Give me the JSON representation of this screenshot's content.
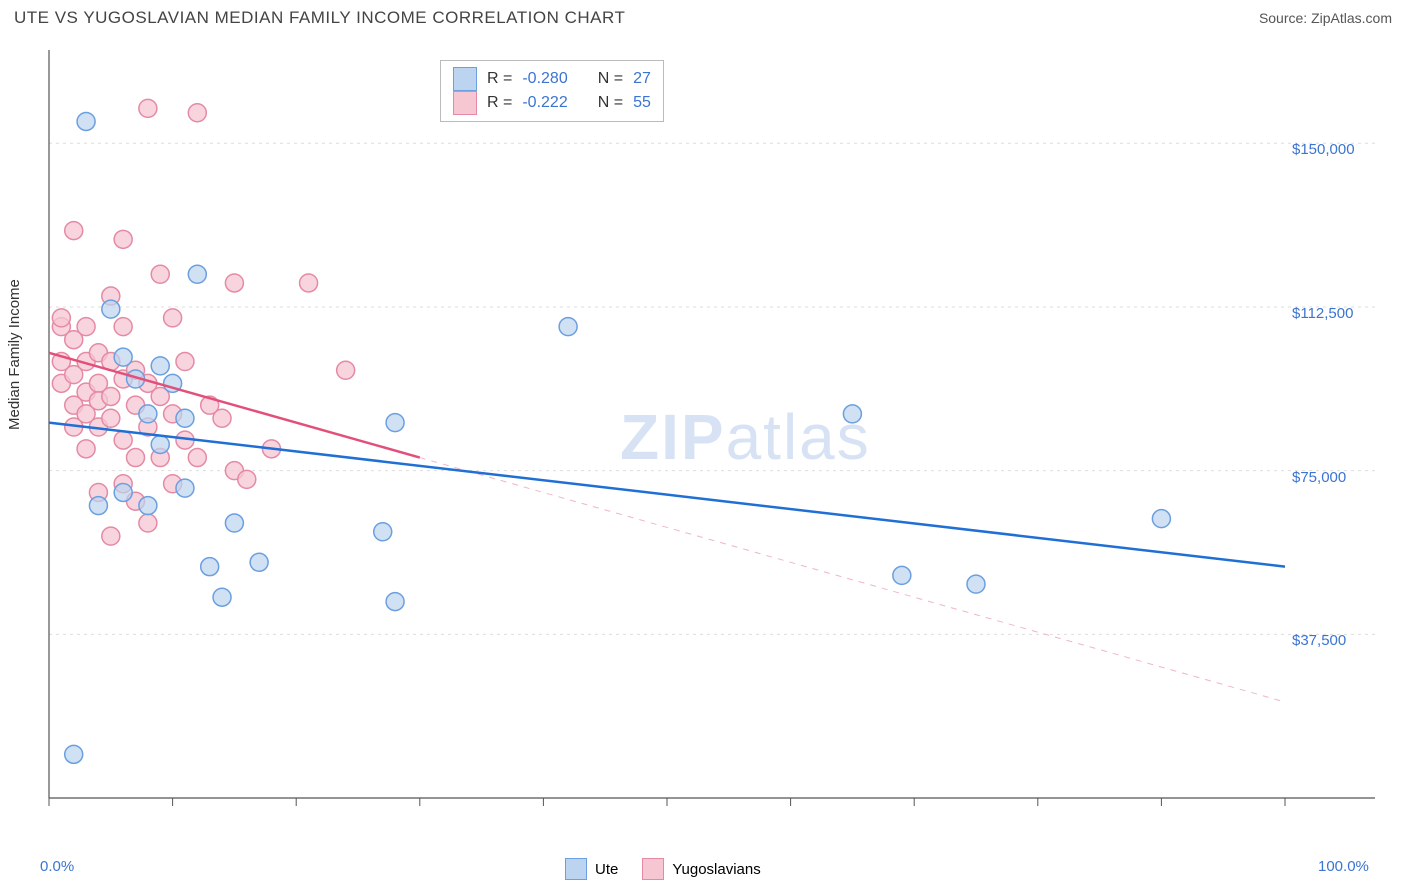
{
  "title": "UTE VS YUGOSLAVIAN MEDIAN FAMILY INCOME CORRELATION CHART",
  "source": "Source: ZipAtlas.com",
  "y_axis_label": "Median Family Income",
  "watermark": {
    "zip": "ZIP",
    "atlas": "atlas"
  },
  "chart": {
    "type": "scatter",
    "background_color": "#ffffff",
    "grid_color": "#dddddd",
    "axis_color": "#555555",
    "xlim": [
      0,
      100
    ],
    "ylim": [
      0,
      170000
    ],
    "x_ticks": [
      0,
      10,
      20,
      30,
      40,
      50,
      60,
      70,
      80,
      90,
      100
    ],
    "x_tick_labels": {
      "0": "0.0%",
      "100": "100.0%"
    },
    "y_gridlines": [
      37500,
      75000,
      112500,
      150000
    ],
    "y_tick_labels": [
      "$37,500",
      "$75,000",
      "$112,500",
      "$150,000"
    ],
    "marker_radius": 9,
    "marker_stroke_width": 1.5,
    "series": [
      {
        "name": "Ute",
        "fill": "#bcd4f0",
        "stroke": "#6b9fe0",
        "fill_opacity": 0.7,
        "trend": {
          "color": "#1f6fd4",
          "width": 2.5,
          "dash": "none",
          "x1": 0,
          "y1": 86000,
          "x2": 100,
          "y2": 53000,
          "extrapolate_dash": false
        },
        "R": "-0.280",
        "N": "27",
        "points": [
          [
            3,
            155000
          ],
          [
            4,
            67000
          ],
          [
            5,
            112000
          ],
          [
            6,
            101000
          ],
          [
            6,
            70000
          ],
          [
            7,
            96000
          ],
          [
            8,
            88000
          ],
          [
            8,
            67000
          ],
          [
            9,
            99000
          ],
          [
            10,
            95000
          ],
          [
            11,
            87000
          ],
          [
            11,
            71000
          ],
          [
            12,
            120000
          ],
          [
            13,
            53000
          ],
          [
            14,
            46000
          ],
          [
            15,
            63000
          ],
          [
            17,
            54000
          ],
          [
            27,
            61000
          ],
          [
            28,
            86000
          ],
          [
            28,
            45000
          ],
          [
            42,
            108000
          ],
          [
            65,
            88000
          ],
          [
            69,
            51000
          ],
          [
            75,
            49000
          ],
          [
            90,
            64000
          ],
          [
            2,
            10000
          ],
          [
            9,
            81000
          ]
        ]
      },
      {
        "name": "Yugoslavians",
        "fill": "#f6c7d3",
        "stroke": "#e58aa5",
        "fill_opacity": 0.75,
        "trend": {
          "color": "#e2507a",
          "width": 2.5,
          "dash": "4 4",
          "x1": 0,
          "y1": 102000,
          "x2": 30,
          "y2": 78000,
          "extrapolate_to_x": 100,
          "extrapolated_dash": "6 6",
          "extrapolated_width": 1,
          "extrapolated_color": "#efb6c6"
        },
        "R": "-0.222",
        "N": "55",
        "points": [
          [
            1,
            108000
          ],
          [
            1,
            100000
          ],
          [
            1,
            95000
          ],
          [
            1,
            110000
          ],
          [
            2,
            130000
          ],
          [
            2,
            105000
          ],
          [
            2,
            97000
          ],
          [
            2,
            90000
          ],
          [
            2,
            85000
          ],
          [
            3,
            108000
          ],
          [
            3,
            100000
          ],
          [
            3,
            93000
          ],
          [
            3,
            88000
          ],
          [
            3,
            80000
          ],
          [
            4,
            102000
          ],
          [
            4,
            95000
          ],
          [
            4,
            91000
          ],
          [
            4,
            85000
          ],
          [
            4,
            70000
          ],
          [
            5,
            115000
          ],
          [
            5,
            100000
          ],
          [
            5,
            92000
          ],
          [
            5,
            87000
          ],
          [
            5,
            60000
          ],
          [
            6,
            128000
          ],
          [
            6,
            108000
          ],
          [
            6,
            96000
          ],
          [
            6,
            82000
          ],
          [
            6,
            72000
          ],
          [
            7,
            98000
          ],
          [
            7,
            90000
          ],
          [
            7,
            78000
          ],
          [
            7,
            68000
          ],
          [
            8,
            158000
          ],
          [
            8,
            95000
          ],
          [
            8,
            85000
          ],
          [
            8,
            63000
          ],
          [
            9,
            120000
          ],
          [
            9,
            92000
          ],
          [
            9,
            78000
          ],
          [
            10,
            110000
          ],
          [
            10,
            88000
          ],
          [
            10,
            72000
          ],
          [
            11,
            100000
          ],
          [
            11,
            82000
          ],
          [
            12,
            78000
          ],
          [
            12,
            157000
          ],
          [
            13,
            90000
          ],
          [
            14,
            87000
          ],
          [
            15,
            118000
          ],
          [
            15,
            75000
          ],
          [
            16,
            73000
          ],
          [
            18,
            80000
          ],
          [
            21,
            118000
          ],
          [
            24,
            98000
          ]
        ]
      }
    ]
  },
  "legend_top": {
    "rows": [
      {
        "r_label": "R =",
        "n_label": "N ="
      },
      {
        "r_label": "R =",
        "n_label": "N ="
      }
    ]
  },
  "legend_bottom": {
    "items": [
      "Ute",
      "Yugoslavians"
    ]
  }
}
